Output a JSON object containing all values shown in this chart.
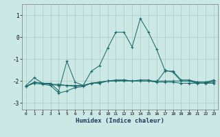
{
  "title": "",
  "xlabel": "Humidex (Indice chaleur)",
  "ylabel": "",
  "background_color": "#cce8e5",
  "grid_color": "#aaccca",
  "line_color": "#1a6b6b",
  "xlim": [
    -0.5,
    23.5
  ],
  "ylim": [
    -3.3,
    1.5
  ],
  "yticks": [
    -3,
    -2,
    -1,
    0,
    1
  ],
  "xticks": [
    0,
    1,
    2,
    3,
    4,
    5,
    6,
    7,
    8,
    9,
    10,
    11,
    12,
    13,
    14,
    15,
    16,
    17,
    18,
    19,
    20,
    21,
    22,
    23
  ],
  "lines": [
    {
      "x": [
        0,
        1,
        2,
        3,
        4,
        5,
        6,
        7,
        8,
        9,
        10,
        11,
        12,
        13,
        14,
        15,
        16,
        17,
        18,
        19,
        20,
        21,
        22,
        23
      ],
      "y": [
        -2.2,
        -1.85,
        -2.1,
        -2.1,
        -2.45,
        -1.1,
        -2.05,
        -2.2,
        -1.55,
        -1.3,
        -0.5,
        0.22,
        0.22,
        -0.45,
        0.85,
        0.22,
        -0.55,
        -1.5,
        -1.6,
        -2.0,
        -2.0,
        -2.1,
        -2.1,
        -2.0
      ]
    },
    {
      "x": [
        0,
        1,
        2,
        3,
        4,
        5,
        6,
        7,
        8,
        9,
        10,
        11,
        12,
        13,
        14,
        15,
        16,
        17,
        18,
        19,
        20,
        21,
        22,
        23
      ],
      "y": [
        -2.25,
        -2.05,
        -2.1,
        -2.15,
        -2.15,
        -2.2,
        -2.2,
        -2.2,
        -2.1,
        -2.05,
        -2.0,
        -2.0,
        -1.95,
        -2.0,
        -2.0,
        -2.0,
        -2.0,
        -2.0,
        -2.0,
        -2.0,
        -2.0,
        -2.05,
        -2.05,
        -2.05
      ]
    },
    {
      "x": [
        0,
        1,
        2,
        3,
        4,
        5,
        6,
        7,
        8,
        9,
        10,
        11,
        12,
        13,
        14,
        15,
        16,
        17,
        18,
        19,
        20,
        21,
        22,
        23
      ],
      "y": [
        -2.25,
        -2.05,
        -2.1,
        -2.15,
        -2.2,
        -2.2,
        -2.25,
        -2.2,
        -2.1,
        -2.1,
        -2.0,
        -2.0,
        -2.0,
        -2.0,
        -2.0,
        -2.0,
        -2.05,
        -2.05,
        -2.05,
        -2.1,
        -2.1,
        -2.1,
        -2.1,
        -2.1
      ]
    },
    {
      "x": [
        0,
        1,
        2,
        3,
        4,
        5,
        6,
        7,
        8,
        9,
        10,
        11,
        12,
        13,
        14,
        15,
        16,
        17,
        18,
        19,
        20,
        21,
        22,
        23
      ],
      "y": [
        -2.25,
        -2.1,
        -2.15,
        -2.2,
        -2.55,
        -2.45,
        -2.3,
        -2.25,
        -2.1,
        -2.05,
        -2.0,
        -1.95,
        -1.95,
        -2.0,
        -1.95,
        -1.95,
        -2.05,
        -1.55,
        -1.55,
        -1.95,
        -1.95,
        -2.05,
        -2.05,
        -1.95
      ]
    }
  ]
}
